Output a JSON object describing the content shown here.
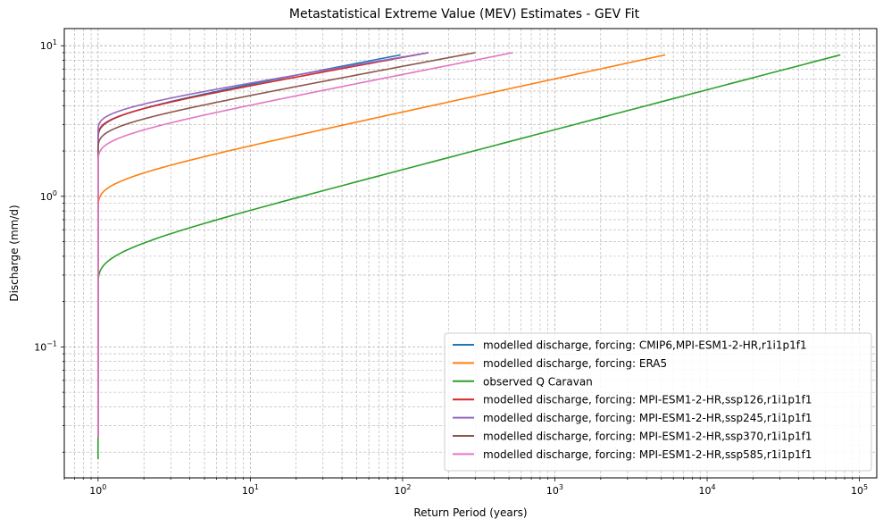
{
  "chart_data": {
    "type": "line",
    "title": "Metastatistical Extreme Value (MEV) Estimates - GEV Fit",
    "xlabel": "Return Period (years)",
    "ylabel": "Discharge (mm/d)",
    "xscale": "log",
    "yscale": "log",
    "xlim": [
      0.6,
      130000
    ],
    "ylim": [
      0.0135,
      13
    ],
    "grid": true,
    "legend_position": "lower-right",
    "x_ticks": [
      {
        "value": 1,
        "base": "10",
        "exp": "0"
      },
      {
        "value": 10,
        "base": "10",
        "exp": "1"
      },
      {
        "value": 100,
        "base": "10",
        "exp": "2"
      },
      {
        "value": 1000,
        "base": "10",
        "exp": "3"
      },
      {
        "value": 10000,
        "base": "10",
        "exp": "4"
      },
      {
        "value": 100000,
        "base": "10",
        "exp": "5"
      }
    ],
    "y_ticks": [
      {
        "value": 0.1,
        "base": "10",
        "exp": "−1"
      },
      {
        "value": 1,
        "base": "10",
        "exp": "0"
      },
      {
        "value": 10,
        "base": "10",
        "exp": "1"
      }
    ],
    "series": [
      {
        "name": "modelled discharge, forcing: CMIP6,MPI-ESM1-2-HR,r1i1p1f1",
        "color": "#1f77b4",
        "ymin": 0.025,
        "xmax": 97,
        "ymax": 8.7,
        "scale": 2.39,
        "shape": 0.195
      },
      {
        "name": "modelled discharge, forcing: ERA5",
        "color": "#ff7f0e",
        "ymin": 0.025,
        "xmax": 5300,
        "ymax": 8.7,
        "scale": 1.12,
        "shape": 0.22
      },
      {
        "name": "observed Q Caravan",
        "color": "#2ca02c",
        "ymin": 0.018,
        "xmax": 75000,
        "ymax": 8.7,
        "scale": 0.42,
        "shape": 0.265
      },
      {
        "name": "modelled discharge, forcing: MPI-ESM1-2-HR,ssp126,r1i1p1f1",
        "color": "#d62728",
        "ymin": 0.025,
        "xmax": 148,
        "ymax": 9.0,
        "scale": 2.36,
        "shape": 0.185
      },
      {
        "name": "modelled discharge, forcing: MPI-ESM1-2-HR,ssp245,r1i1p1f1",
        "color": "#9467bd",
        "ymin": 0.025,
        "xmax": 148,
        "ymax": 9.0,
        "scale": 2.5,
        "shape": 0.17
      },
      {
        "name": "modelled discharge, forcing: MPI-ESM1-2-HR,ssp370,r1i1p1f1",
        "color": "#8c564b",
        "ymin": 0.025,
        "xmax": 300,
        "ymax": 9.0,
        "scale": 1.89,
        "shape": 0.19
      },
      {
        "name": "modelled discharge, forcing: MPI-ESM1-2-HR,ssp585,r1i1p1f1",
        "color": "#e377c2",
        "ymin": 0.025,
        "xmax": 530,
        "ymax": 9.0,
        "scale": 1.6,
        "shape": 0.2
      }
    ]
  }
}
